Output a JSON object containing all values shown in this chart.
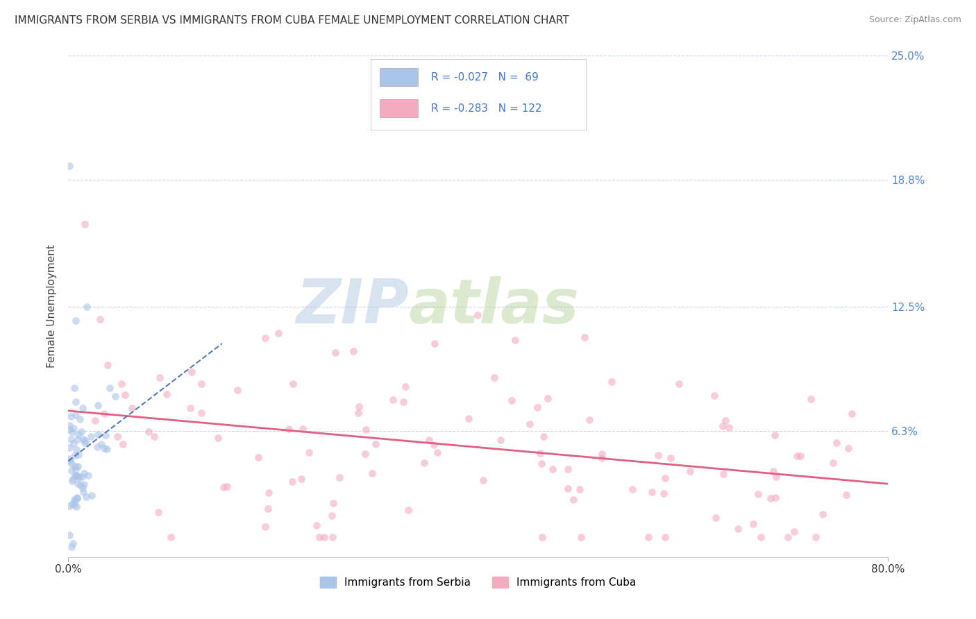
{
  "title": "IMMIGRANTS FROM SERBIA VS IMMIGRANTS FROM CUBA FEMALE UNEMPLOYMENT CORRELATION CHART",
  "source": "Source: ZipAtlas.com",
  "ylabel": "Female Unemployment",
  "legend_labels": [
    "Immigrants from Serbia",
    "Immigrants from Cuba"
  ],
  "serbia_color": "#aac4e8",
  "cuba_color": "#f4aabf",
  "serbia_line_color": "#5577bb",
  "cuba_line_color": "#e06080",
  "serbia_R": -0.027,
  "serbia_N": 69,
  "cuba_R": -0.283,
  "cuba_N": 122,
  "xlim": [
    0.0,
    0.8
  ],
  "ylim": [
    0.0,
    0.25
  ],
  "ytick_vals": [
    0.0,
    0.063,
    0.125,
    0.188,
    0.25
  ],
  "right_yticklabels": [
    "",
    "6.3%",
    "12.5%",
    "18.8%",
    "25.0%"
  ],
  "background_color": "#ffffff",
  "grid_color": "#c8d4e8",
  "watermark_zip": "ZIP",
  "watermark_atlas": "atlas",
  "watermark_color_zip": "#b8cce4",
  "watermark_color_atlas": "#c8d8b0",
  "title_fontsize": 11,
  "axis_tick_color": "#333333",
  "right_tick_color": "#5588cc",
  "marker_size": 60,
  "marker_alpha": 0.6,
  "serbia_trend_start": 0.0,
  "serbia_trend_end": 0.15,
  "cuba_trend_start": 0.0,
  "cuba_trend_end": 0.8
}
